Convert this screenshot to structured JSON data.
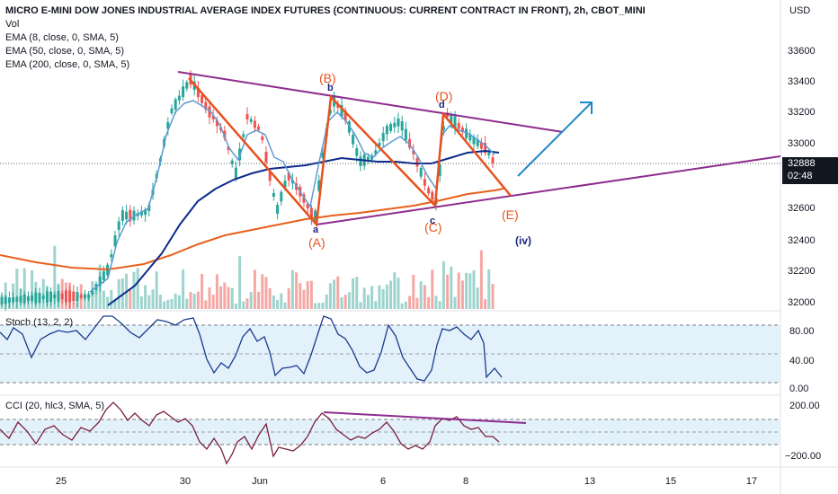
{
  "legend": {
    "title": "MICRO E-MINI DOW JONES INDUSTRIAL AVERAGE INDEX FUTURES (CONTINUOUS: CURRENT CONTRACT IN FRONT), 2h, CBOT_MINI",
    "vol": "Vol",
    "ema1": "EMA (8, close, 0, SMA, 5)",
    "ema2": "EMA (50, close, 0, SMA, 5)",
    "ema3": "EMA (200, close, 0, SMA, 5)"
  },
  "price_axis": {
    "currency": "USD",
    "ticks": [
      "33600",
      "33400",
      "33200",
      "33000",
      "32600",
      "32400",
      "32200",
      "32000"
    ],
    "last_price": "32888",
    "countdown": "02:48"
  },
  "stoch": {
    "label": "Stoch (13, 2, 2)",
    "ticks": [
      "80.00",
      "40.00",
      "0.00"
    ]
  },
  "cci": {
    "label": "CCI (20, hlc3, SMA, 5)",
    "ticks": [
      "200.00",
      "−200.00"
    ]
  },
  "time_axis": [
    "25",
    "30",
    "Jun",
    "6",
    "8",
    "13",
    "15",
    "17"
  ],
  "waves": {
    "A": "(A)",
    "B": "(B)",
    "C": "(C)",
    "D": "(D)",
    "E": "(E)",
    "a": "a",
    "b": "b",
    "c": "c",
    "d": "d",
    "iv": "(iv)"
  },
  "colors": {
    "up": "#26a69a",
    "down": "#ef5350",
    "ema8": "#5b9bd5",
    "ema50": "#0d2b8c",
    "ema200": "#e8601c",
    "trendline": "#8e2c8f",
    "wave": "#e8511d",
    "arrow": "#1e88c7"
  },
  "chart_data": {
    "type": "candlestick",
    "ylabel": "USD",
    "ylim": [
      31950,
      33750
    ],
    "x_labels": [
      "25",
      "30",
      "Jun",
      "6",
      "8",
      "13",
      "15",
      "17"
    ],
    "wave_points": [
      {
        "label": "(A)",
        "value": 32500
      },
      {
        "label": "(B)",
        "value": 33320
      },
      {
        "label": "(C)",
        "value": 32620
      },
      {
        "label": "(D)",
        "value": 33200
      },
      {
        "label": "(E)",
        "value": 32700
      }
    ],
    "last": 32888
  }
}
